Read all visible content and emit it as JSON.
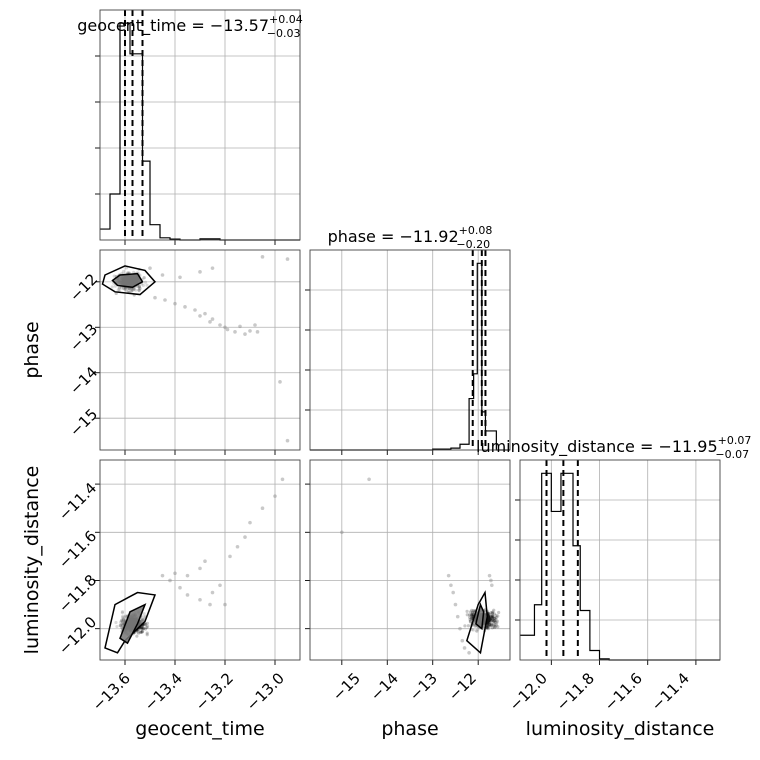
{
  "chart_data": [
    {
      "panel": "geocent_time-hist",
      "type": "histogram",
      "parameter": "geocent_time",
      "title": {
        "name": "geocent_time",
        "value": "−13.57",
        "plus": "+0.04",
        "minus": "−0.03"
      },
      "xlim": [
        -13.7,
        -12.9
      ],
      "ylim": [
        0,
        1.05
      ],
      "bins": [
        -13.7,
        -13.66,
        -13.62,
        -13.6,
        -13.58,
        -13.56,
        -13.53,
        -13.5,
        -13.46,
        -13.42,
        -13.38,
        -13.34,
        -13.3,
        -13.22,
        -13.18,
        -13.0,
        -12.9
      ],
      "counts": [
        0.05,
        0.21,
        0.99,
        0.99,
        0.85,
        0.85,
        0.36,
        0.07,
        0.01,
        0.004,
        0.0,
        0.0,
        0.005,
        0.0,
        0.0,
        0.0
      ],
      "quantiles": [
        -13.6,
        -13.57,
        -13.53
      ]
    },
    {
      "panel": "phase-hist",
      "type": "histogram",
      "parameter": "phase",
      "title": {
        "name": "phase",
        "value": "−11.92",
        "plus": "+0.08",
        "minus": "−0.20"
      },
      "xlim": [
        -15.7,
        -11.3
      ],
      "ylim": [
        0,
        1.05
      ],
      "bins": [
        -15.7,
        -13.0,
        -12.6,
        -12.4,
        -12.2,
        -12.1,
        -12.02,
        -11.92,
        -11.84,
        -11.6,
        -11.3
      ],
      "counts": [
        0.0,
        0.005,
        0.01,
        0.03,
        0.27,
        0.4,
        0.98,
        0.2,
        0.1,
        0.0
      ],
      "quantiles": [
        -12.12,
        -11.92,
        -11.84
      ]
    },
    {
      "panel": "luminosity_distance-hist",
      "type": "histogram",
      "parameter": "luminosity_distance",
      "title": {
        "name": "luminosity_distance",
        "value": "−11.95",
        "plus": "+0.07",
        "minus": "−0.07"
      },
      "xlim": [
        -12.13,
        -11.3
      ],
      "ylim": [
        0,
        1.05
      ],
      "bins": [
        -12.13,
        -12.07,
        -12.04,
        -12.0,
        -11.96,
        -11.91,
        -11.88,
        -11.84,
        -11.8,
        -11.76,
        -11.3
      ],
      "counts": [
        0.13,
        0.29,
        0.98,
        0.78,
        0.98,
        0.6,
        0.26,
        0.05,
        0.006,
        0.0
      ],
      "quantiles": [
        -12.02,
        -11.95,
        -11.89
      ]
    },
    {
      "panel": "phase-vs-geocent_time",
      "type": "scatter",
      "x_parameter": "geocent_time",
      "y_parameter": "phase",
      "xlim": [
        -13.7,
        -12.9
      ],
      "ylim": [
        -15.7,
        -11.3
      ],
      "density_core": {
        "x": -13.58,
        "y": -11.98
      },
      "tail_points": [
        [
          -13.5,
          -11.7
        ],
        [
          -13.45,
          -11.85
        ],
        [
          -13.38,
          -11.9
        ],
        [
          -13.3,
          -11.78
        ],
        [
          -13.25,
          -11.7
        ],
        [
          -13.05,
          -11.45
        ],
        [
          -12.95,
          -11.5
        ],
        [
          -13.48,
          -12.35
        ],
        [
          -13.44,
          -12.4
        ],
        [
          -13.4,
          -12.48
        ],
        [
          -13.36,
          -12.55
        ],
        [
          -13.32,
          -12.62
        ],
        [
          -13.28,
          -12.7
        ],
        [
          -13.25,
          -12.82
        ],
        [
          -13.22,
          -12.95
        ],
        [
          -13.19,
          -13.05
        ],
        [
          -13.16,
          -13.1
        ],
        [
          -13.2,
          -13.0
        ],
        [
          -13.14,
          -12.98
        ],
        [
          -13.1,
          -13.08
        ],
        [
          -13.26,
          -12.88
        ],
        [
          -13.3,
          -12.75
        ],
        [
          -13.08,
          -12.95
        ],
        [
          -12.98,
          -14.2
        ],
        [
          -13.07,
          -13.1
        ],
        [
          -13.12,
          -13.15
        ]
      ],
      "contours": [
        [
          [
            -13.68,
            -11.85
          ],
          [
            -13.6,
            -11.65
          ],
          [
            -13.52,
            -11.75
          ],
          [
            -13.48,
            -12.0
          ],
          [
            -13.54,
            -12.28
          ],
          [
            -13.64,
            -12.22
          ],
          [
            -13.69,
            -12.05
          ]
        ],
        [
          [
            -13.62,
            -11.85
          ],
          [
            -13.55,
            -11.82
          ],
          [
            -13.53,
            -12.0
          ],
          [
            -13.57,
            -12.12
          ],
          [
            -13.63,
            -12.08
          ],
          [
            -13.65,
            -11.97
          ]
        ]
      ]
    },
    {
      "panel": "luminosity_distance-vs-geocent_time",
      "type": "scatter",
      "x_parameter": "geocent_time",
      "y_parameter": "luminosity_distance",
      "xlim": [
        -13.7,
        -12.9
      ],
      "ylim": [
        -12.13,
        -11.3
      ],
      "density_core": {
        "x": -13.57,
        "y": -11.98
      },
      "tail_points": [
        [
          -13.45,
          -11.78
        ],
        [
          -13.42,
          -11.8
        ],
        [
          -13.38,
          -11.83
        ],
        [
          -13.35,
          -11.78
        ],
        [
          -13.3,
          -11.75
        ],
        [
          -13.28,
          -11.72
        ],
        [
          -13.25,
          -11.85
        ],
        [
          -13.22,
          -11.82
        ],
        [
          -13.2,
          -11.9
        ],
        [
          -13.18,
          -11.7
        ],
        [
          -13.15,
          -11.66
        ],
        [
          -13.12,
          -11.62
        ],
        [
          -13.1,
          -11.56
        ],
        [
          -13.05,
          -11.5
        ],
        [
          -13.0,
          -11.45
        ],
        [
          -12.97,
          -11.38
        ],
        [
          -12.95,
          -11.22
        ],
        [
          -13.3,
          -11.88
        ],
        [
          -13.26,
          -11.9
        ],
        [
          -13.35,
          -11.86
        ],
        [
          -13.4,
          -11.77
        ]
      ],
      "contours": [
        [
          [
            -13.68,
            -12.08
          ],
          [
            -13.64,
            -11.9
          ],
          [
            -13.55,
            -11.85
          ],
          [
            -13.48,
            -11.86
          ],
          [
            -13.52,
            -11.97
          ],
          [
            -13.6,
            -12.05
          ],
          [
            -13.63,
            -12.1
          ]
        ],
        [
          [
            -13.62,
            -12.04
          ],
          [
            -13.58,
            -11.93
          ],
          [
            -13.52,
            -11.9
          ],
          [
            -13.55,
            -11.98
          ],
          [
            -13.59,
            -12.06
          ]
        ]
      ]
    },
    {
      "panel": "luminosity_distance-vs-phase",
      "type": "scatter",
      "x_parameter": "phase",
      "y_parameter": "luminosity_distance",
      "xlim": [
        -15.7,
        -11.3
      ],
      "ylim": [
        -12.13,
        -11.3
      ],
      "density_core": {
        "x": -11.9,
        "y": -11.96
      },
      "tail_points": [
        [
          -12.6,
          -11.82
        ],
        [
          -12.55,
          -11.85
        ],
        [
          -12.5,
          -11.9
        ],
        [
          -12.45,
          -11.95
        ],
        [
          -12.4,
          -12.0
        ],
        [
          -12.35,
          -12.05
        ],
        [
          -12.3,
          -12.08
        ],
        [
          -12.65,
          -11.78
        ],
        [
          -15.0,
          -11.6
        ],
        [
          -14.4,
          -11.38
        ],
        [
          -12.2,
          -12.1
        ],
        [
          -11.75,
          -11.78
        ],
        [
          -11.72,
          -11.8
        ],
        [
          -11.7,
          -11.82
        ]
      ],
      "contours": [
        [
          [
            -12.25,
            -12.05
          ],
          [
            -11.95,
            -12.1
          ],
          [
            -11.8,
            -11.95
          ],
          [
            -11.85,
            -11.85
          ],
          [
            -12.0,
            -11.9
          ]
        ],
        [
          [
            -12.05,
            -11.98
          ],
          [
            -11.92,
            -12.0
          ],
          [
            -11.88,
            -11.93
          ],
          [
            -11.95,
            -11.9
          ]
        ]
      ]
    }
  ],
  "axis_labels": {
    "bottom": [
      "geocent_time",
      "phase",
      "luminosity_distance"
    ],
    "left": [
      "phase",
      "luminosity_distance"
    ]
  },
  "tick_labels": {
    "geocent_time_x": [
      "−13.6",
      "−13.4",
      "−13.2",
      "−13.0"
    ],
    "phase_x": [
      "−15",
      "−14",
      "−13",
      "−12"
    ],
    "phase_y": [
      "−12",
      "−13",
      "−14",
      "−15"
    ],
    "luminosity_distance_x": [
      "−12.0",
      "−11.8",
      "−11.6",
      "−11.4"
    ],
    "luminosity_distance_y": [
      "−11.4",
      "−11.6",
      "−11.8",
      "−12.0"
    ]
  }
}
